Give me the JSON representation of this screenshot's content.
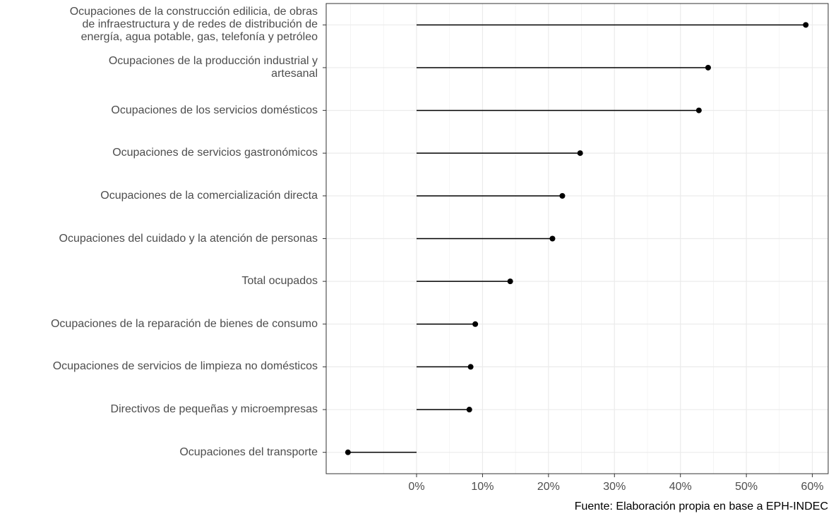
{
  "chart_data": {
    "type": "lollipop",
    "categories": [
      "Ocupaciones de la construcción edilicia, de obras\nde infraestructura y de redes de distribución de\nenergía, agua potable, gas, telefonía y petróleo",
      "Ocupaciones de la producción industrial y\nartesanal",
      "Ocupaciones de los servicios domésticos",
      "Ocupaciones de servicios gastronómicos",
      "Ocupaciones de la comercialización directa",
      "Ocupaciones del cuidado y la atención de personas",
      "Total ocupados",
      "Ocupaciones de la reparación de bienes de consumo",
      "Ocupaciones de servicios de limpieza no domésticos",
      "Directivos de pequeñas y microempresas",
      "Ocupaciones del transporte"
    ],
    "values": [
      59.0,
      44.2,
      42.8,
      24.8,
      22.1,
      20.6,
      14.2,
      8.9,
      8.2,
      8.0,
      -10.4
    ],
    "color": "#000000",
    "xlim": [
      -13.7,
      62.4
    ],
    "xticks": [
      {
        "value": 0,
        "label": "0%"
      },
      {
        "value": 10,
        "label": "10%"
      },
      {
        "value": 20,
        "label": "20%"
      },
      {
        "value": 30,
        "label": "30%"
      },
      {
        "value": 40,
        "label": "40%"
      },
      {
        "value": 50,
        "label": "50%"
      },
      {
        "value": 60,
        "label": "60%"
      }
    ],
    "grid": true,
    "caption": "Fuente: Elaboración propia en base a EPH-INDEC"
  }
}
